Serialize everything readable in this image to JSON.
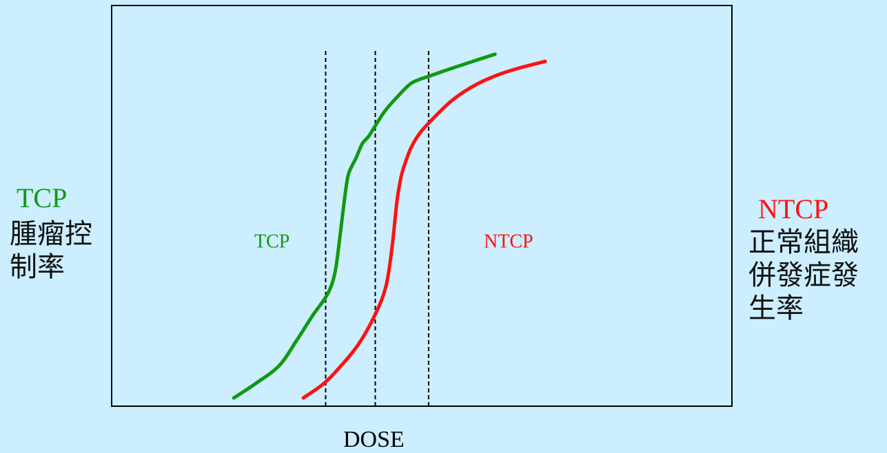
{
  "colors": {
    "background": "#cceeff",
    "tcp": "#119911",
    "ntcp": "#ff1111"
  },
  "left_axis": {
    "label_en": "TCP",
    "label_cjk_1": "腫瘤控",
    "label_cjk_2": "制率"
  },
  "right_axis": {
    "label_en": "NTCP",
    "label_cjk_1": "正常組織",
    "label_cjk_2": "併發症發",
    "label_cjk_3": "生率"
  },
  "chart_data": {
    "type": "line",
    "xlabel": "DOSE",
    "ylabel": "TCP",
    "y2label": "NTCP",
    "xlim": [
      0,
      1
    ],
    "ylim": [
      0,
      1
    ],
    "grid": false,
    "series": [
      {
        "name": "TCP",
        "color": "#119911",
        "x": [
          0.197,
          0.232,
          0.27,
          0.298,
          0.324,
          0.348,
          0.36,
          0.368,
          0.375,
          0.381,
          0.388,
          0.394,
          0.404,
          0.414,
          0.425,
          0.44,
          0.46,
          0.484,
          0.514,
          0.547,
          0.582,
          0.618
        ],
        "y": [
          0.0,
          0.04,
          0.09,
          0.16,
          0.23,
          0.29,
          0.35,
          0.45,
          0.55,
          0.62,
          0.65,
          0.67,
          0.71,
          0.73,
          0.76,
          0.8,
          0.84,
          0.88,
          0.9,
          0.92,
          0.94,
          0.96
        ]
      },
      {
        "name": "NTCP",
        "color": "#ff1111",
        "x": [
          0.309,
          0.342,
          0.37,
          0.398,
          0.424,
          0.442,
          0.452,
          0.46,
          0.467,
          0.474,
          0.483,
          0.497,
          0.518,
          0.548,
          0.582,
          0.619,
          0.654,
          0.699
        ],
        "y": [
          0.0,
          0.04,
          0.09,
          0.15,
          0.23,
          0.31,
          0.42,
          0.55,
          0.62,
          0.66,
          0.7,
          0.74,
          0.78,
          0.83,
          0.87,
          0.9,
          0.92,
          0.94
        ]
      }
    ],
    "annotations": [
      {
        "text": "TCP",
        "color": "#119911",
        "x": 0.23,
        "y": 0.42
      },
      {
        "text": "NTCP",
        "color": "#ff1111",
        "x": 0.6,
        "y": 0.42
      }
    ],
    "vlines": [
      0.345,
      0.425,
      0.511
    ]
  }
}
